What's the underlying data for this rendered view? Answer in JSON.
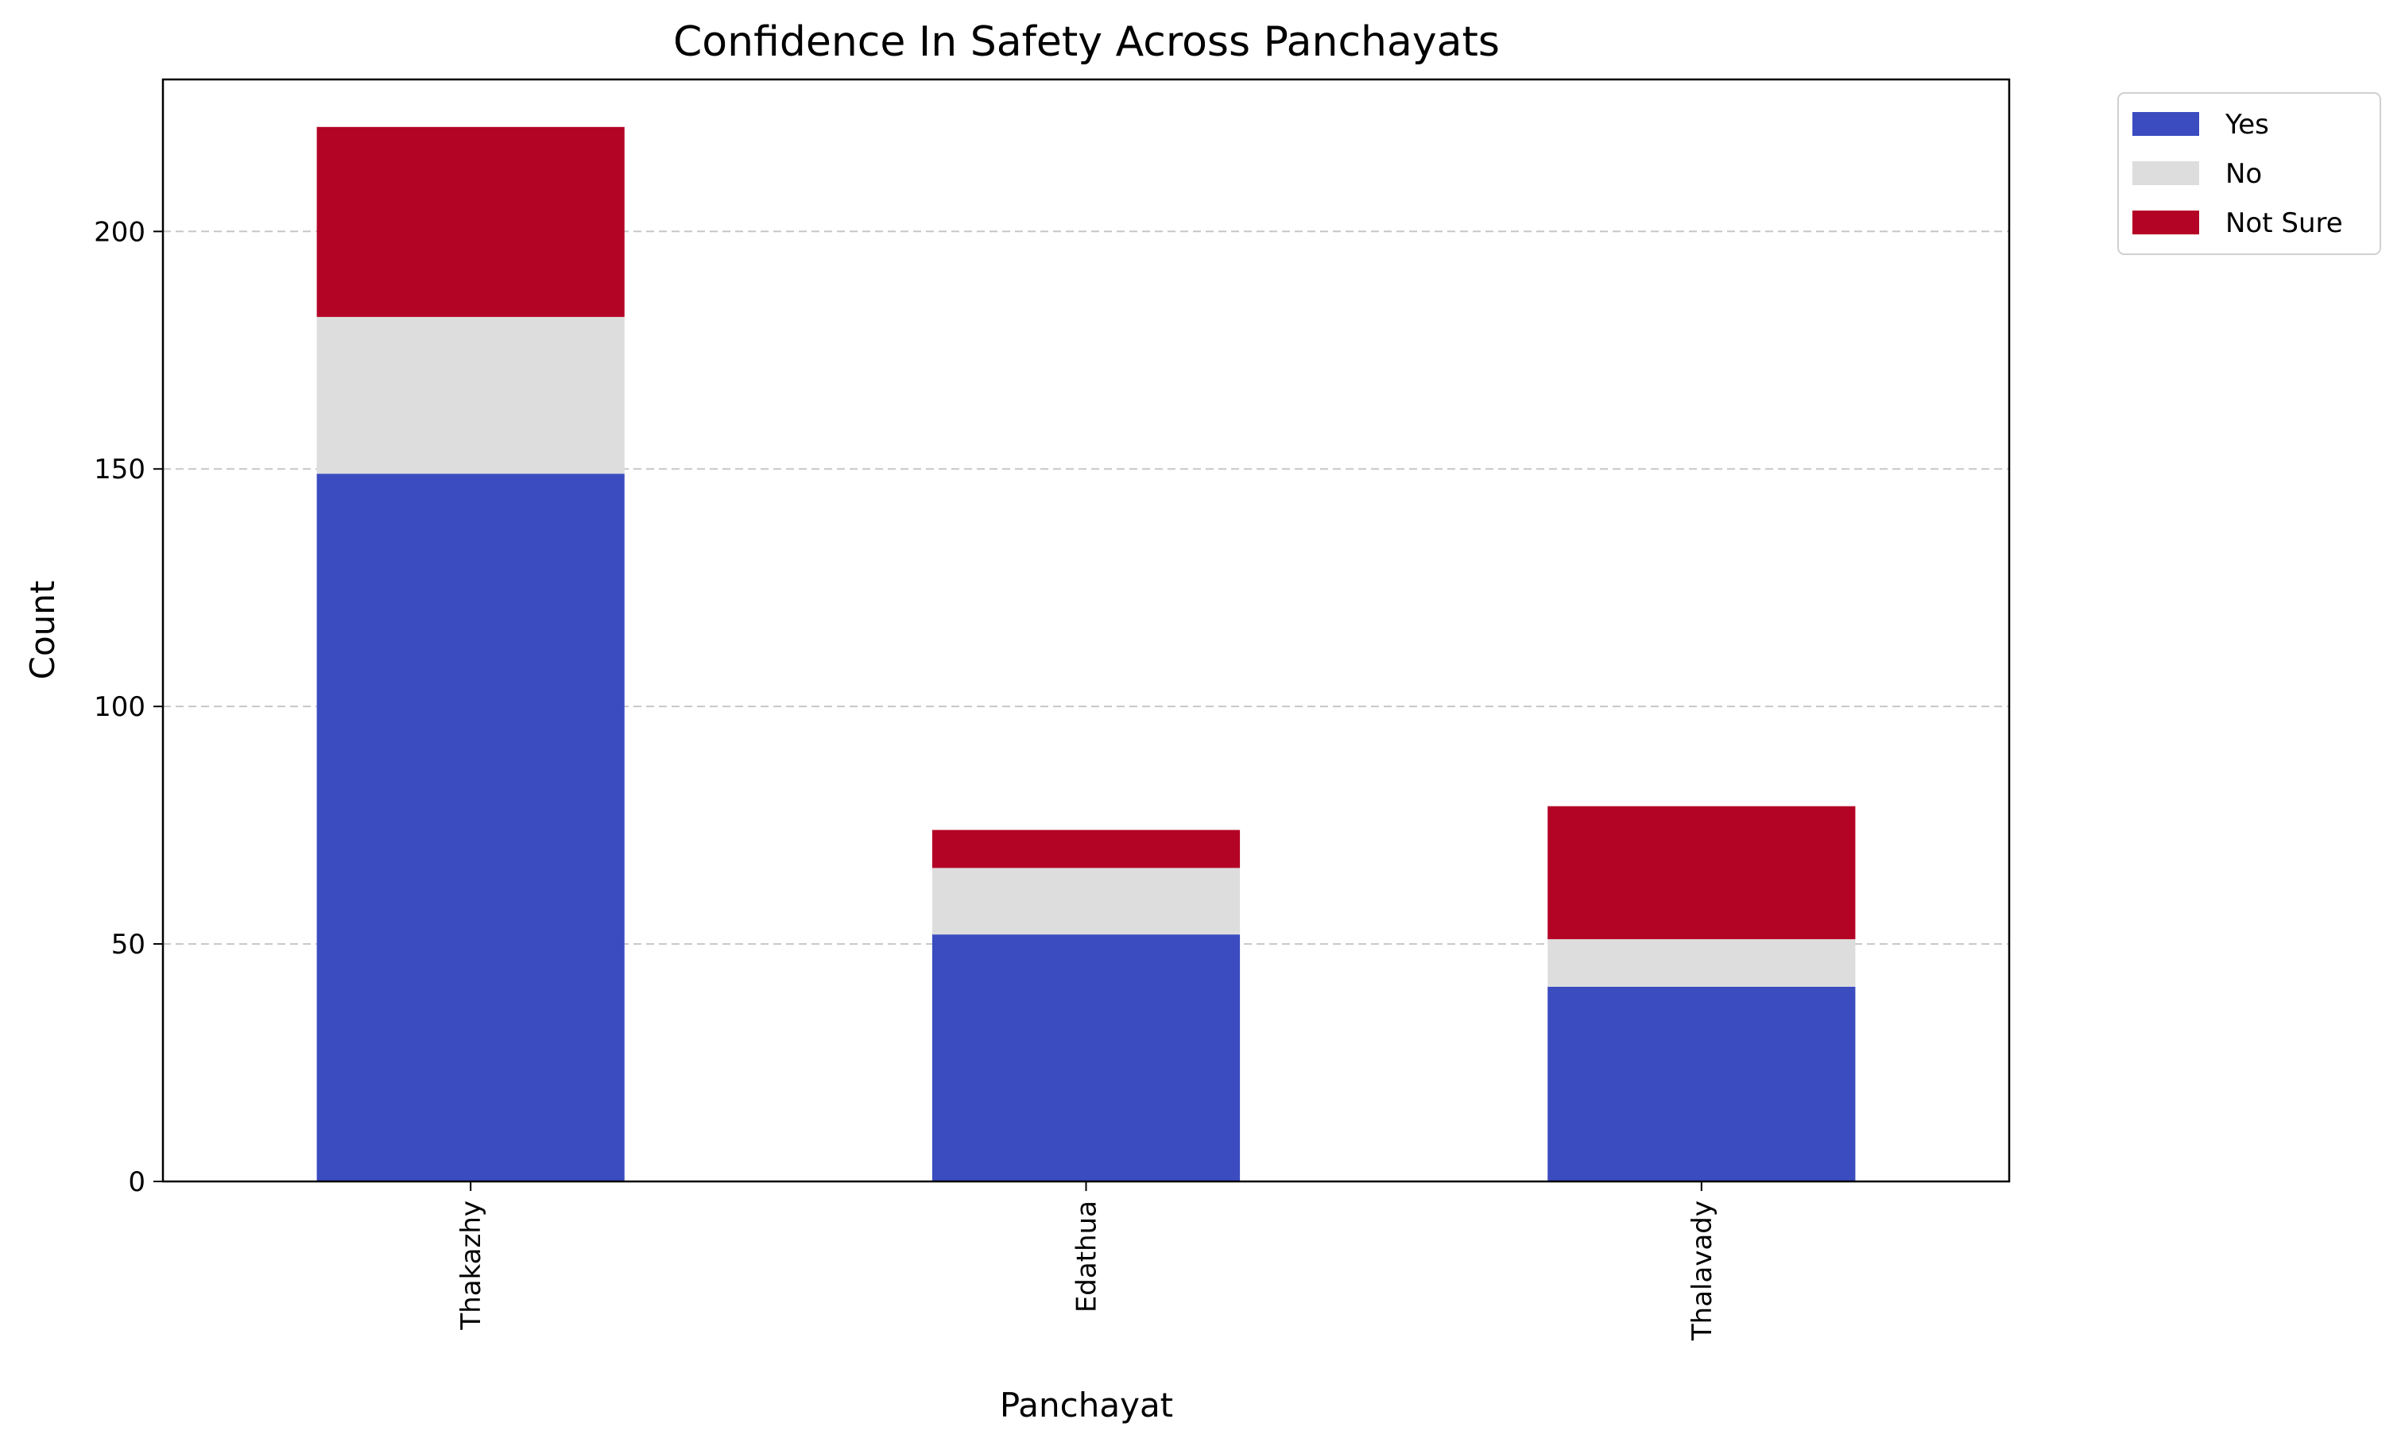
{
  "chart_data": {
    "type": "bar",
    "stacked": true,
    "title": "Confidence In Safety Across Panchayats",
    "xlabel": "Panchayat",
    "ylabel": "Count",
    "categories": [
      "Thakazhy",
      "Edathua",
      "Thalavady"
    ],
    "series": [
      {
        "name": "Yes",
        "color": "#3b4cc0",
        "values": [
          149,
          52,
          41
        ]
      },
      {
        "name": "No",
        "color": "#dddddd",
        "values": [
          33,
          14,
          10
        ]
      },
      {
        "name": "Not Sure",
        "color": "#b40426",
        "values": [
          40,
          8,
          28
        ]
      }
    ],
    "ylim": [
      0,
      232
    ],
    "yticks": [
      0,
      50,
      100,
      150,
      200
    ],
    "grid": "y-dashed",
    "legend": "outside-top-right"
  }
}
